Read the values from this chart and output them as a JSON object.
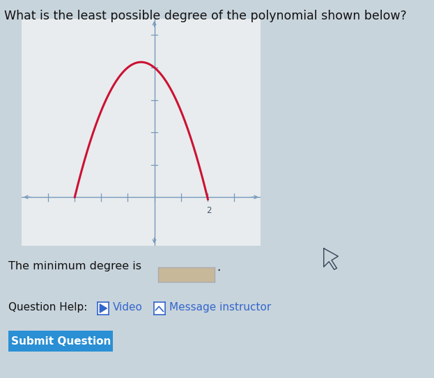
{
  "title": "What is the least possible degree of the polynomial shown below?",
  "title_fontsize": 12.5,
  "bg_color": "#c8d4dc",
  "graph_bg_color": "#e8ecee",
  "curve_color": "#cc1133",
  "curve_linewidth": 2.2,
  "axis_color": "#7799bb",
  "tick_color": "#7799bb",
  "xlim": [
    -5,
    4
  ],
  "ylim": [
    -1.5,
    5.5
  ],
  "x_ticks": [
    -4,
    -3,
    -2,
    -1,
    0,
    1,
    2,
    3
  ],
  "y_ticks": [
    1,
    2,
    3,
    4,
    5
  ],
  "poly_a": -1.0,
  "poly_b": -1.0,
  "poly_c": 4.0,
  "x_start": -3.0,
  "x_end": 2.02,
  "min_degree_text": "The minimum degree is",
  "help_text": "Question Help:",
  "video_text": "Video",
  "message_text": "Message instructor",
  "submit_text": "Submit Question",
  "submit_bg": "#2a8fd4",
  "submit_color": "#ffffff",
  "answer_box_fill": "#c8b89a",
  "answer_box_edge": "#aaaaaa",
  "text_color": "#111111",
  "link_color": "#3366cc"
}
